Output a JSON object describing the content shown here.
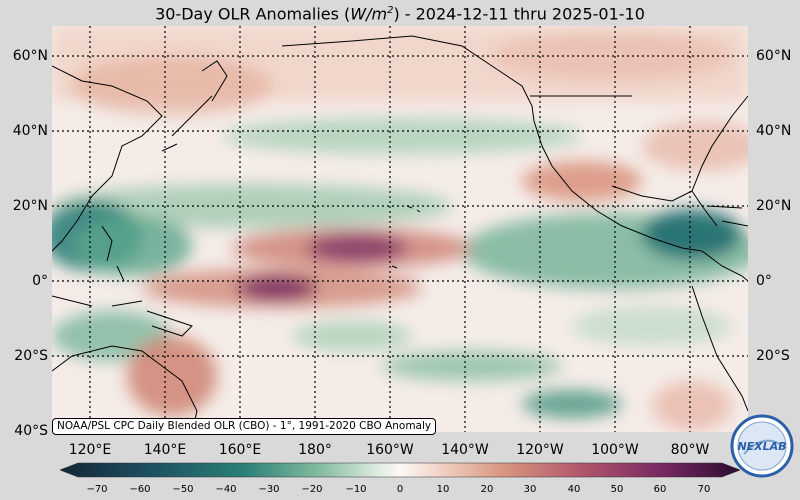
{
  "title": {
    "prefix": "30-Day OLR Anomalies (",
    "units_base": "W/m",
    "units_exp": "2",
    "suffix": ") - 2024-12-11 thru 2025-01-10"
  },
  "lat_labels": [
    "60°N",
    "40°N",
    "20°N",
    "0°",
    "20°S",
    "40°S"
  ],
  "lon_labels": [
    "120°E",
    "140°E",
    "160°E",
    "180°",
    "160°W",
    "140°W",
    "120°W",
    "100°W",
    "80°W"
  ],
  "source_note": "NOAA/PSL CPC Daily Blended OLR (CBO) - 1°, 1991-2020 CBO Anomaly",
  "colorbar_ticks": [
    "−70",
    "−60",
    "−50",
    "−40",
    "−30",
    "−20",
    "−10",
    "0",
    "10",
    "20",
    "30",
    "40",
    "50",
    "60",
    "70"
  ],
  "logo_text": "NEXLAB",
  "colors": {
    "strong_negative": "#1f6e70",
    "negative": "#5aa888",
    "neutral": "#f7f1ee",
    "positive": "#d79580",
    "strong_positive": "#7a2a63"
  }
}
